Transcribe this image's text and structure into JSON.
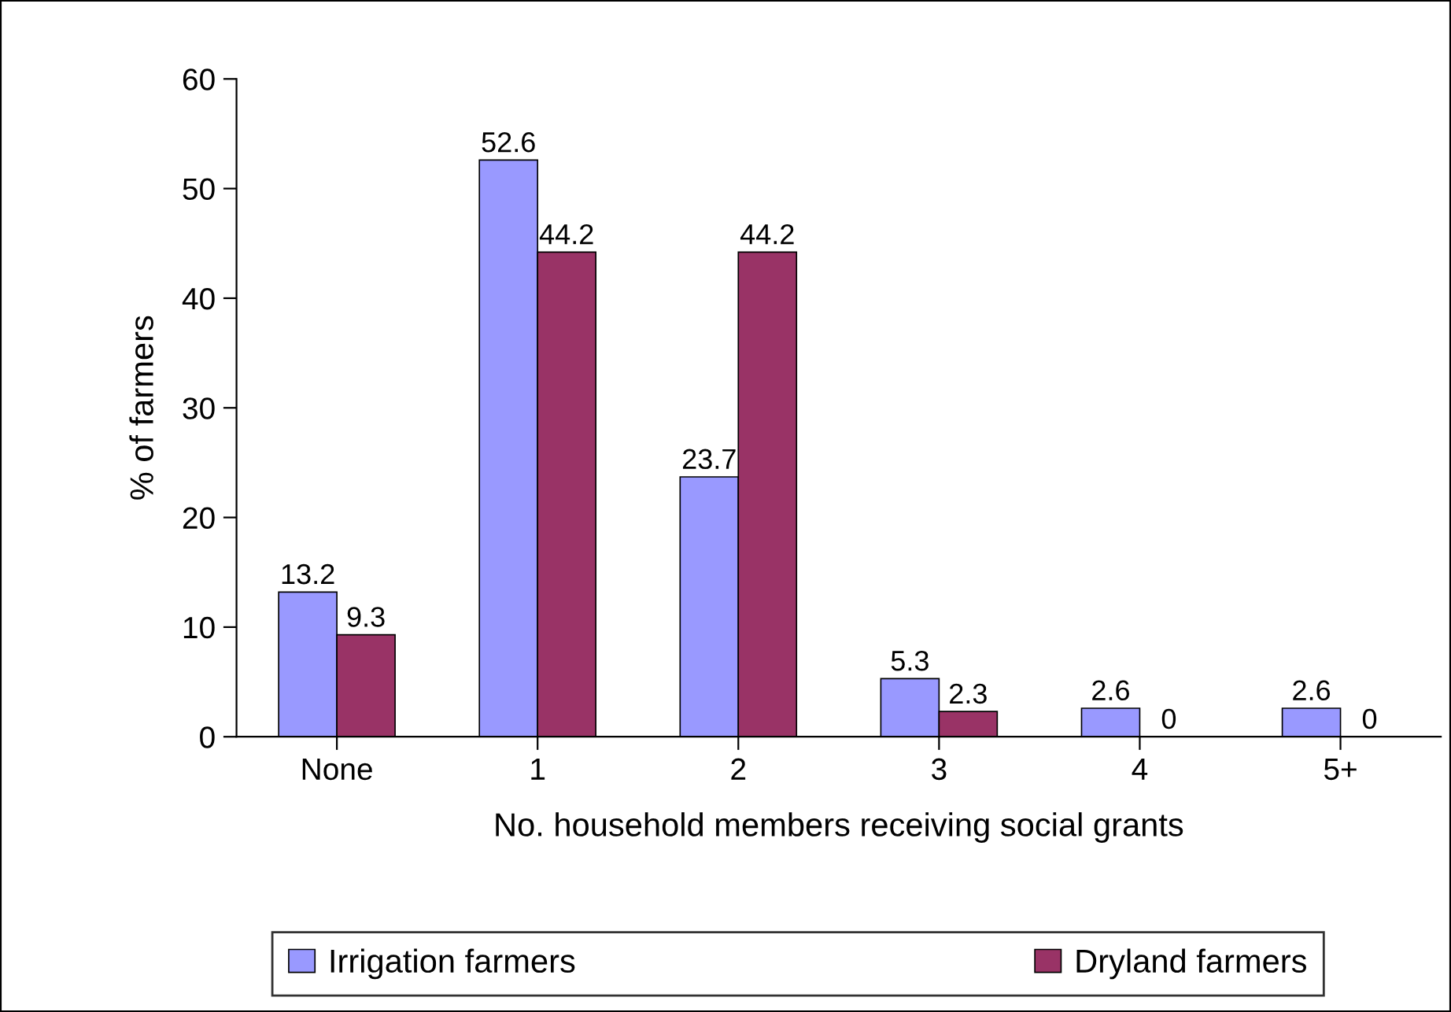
{
  "chart_data": {
    "type": "bar",
    "xlabel": "No. household members receiving social grants",
    "ylabel": "% of farmers",
    "categories": [
      "None",
      "1",
      "2",
      "3",
      "4",
      "5+"
    ],
    "series": [
      {
        "name": "Irrigation farmers",
        "color": "#9999ff",
        "values": [
          13.2,
          52.6,
          23.7,
          5.3,
          2.6,
          2.6
        ]
      },
      {
        "name": "Dryland farmers",
        "color": "#993366",
        "values": [
          9.3,
          44.2,
          44.2,
          2.3,
          0,
          0
        ]
      }
    ],
    "ylim": [
      0,
      60
    ],
    "yticks": [
      0,
      10,
      20,
      30,
      40,
      50,
      60
    ],
    "grid": false,
    "legend": "bottom",
    "data_labels": true
  }
}
